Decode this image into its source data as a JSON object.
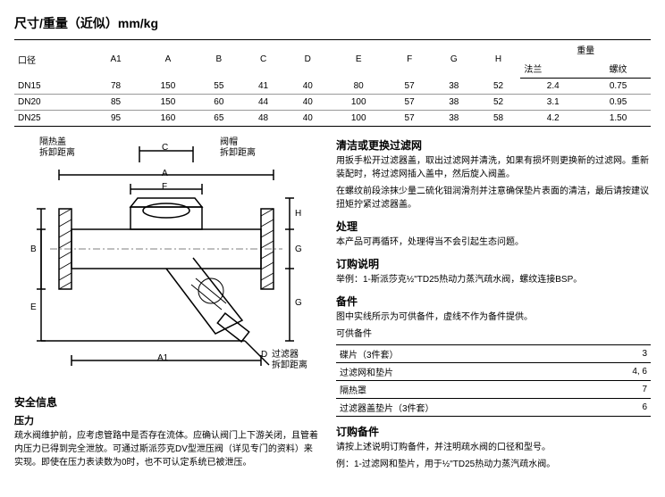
{
  "title": "尺寸/重量（近似）mm/kg",
  "table": {
    "header_main": [
      "口径",
      "A1",
      "A",
      "B",
      "C",
      "D",
      "E",
      "F",
      "G",
      "H"
    ],
    "header_weight": "重量",
    "header_sub": [
      "法兰",
      "螺纹"
    ],
    "rows": [
      [
        "DN15",
        "78",
        "150",
        "55",
        "41",
        "40",
        "80",
        "57",
        "38",
        "52",
        "2.4",
        "0.75"
      ],
      [
        "DN20",
        "85",
        "150",
        "60",
        "44",
        "40",
        "100",
        "57",
        "38",
        "52",
        "3.1",
        "0.95"
      ],
      [
        "DN25",
        "95",
        "160",
        "65",
        "48",
        "40",
        "100",
        "57",
        "38",
        "58",
        "4.2",
        "1.50"
      ]
    ]
  },
  "diagram_labels": {
    "top_left": "隔热盖\n拆卸距离",
    "top_right": "阀帽\n拆卸距离",
    "bottom_right": "过滤器\n拆卸距离",
    "letters": {
      "A": "A",
      "A1": "A1",
      "B": "B",
      "C": "C",
      "D": "D",
      "E": "E",
      "F": "F",
      "G1": "G",
      "G2": "G",
      "H": "H"
    }
  },
  "left_sections": {
    "safety_title": "安全信息",
    "pressure_title": "压力",
    "pressure_text": "疏水阀维护前，应考虑管路中是否存在流体。应确认阀门上下游关闭，且管着内压力已得到完全泄放。可通过斯派莎克DV型泄压阀（详见专门的资料）来实现。即使在压力表读数为0时，也不可认定系统已被泄压。"
  },
  "right_sections": {
    "clean_title": "清洁或更换过滤网",
    "clean_text1": "用扳手松开过滤器盖，取出过滤网并清洗，如果有损坏则更换新的过滤网。重新装配时，将过滤网插入盖中，然后旋入阀盖。",
    "clean_text2": "在螺纹前段涂抹少量二硫化钼润滑剂并注意确保垫片表面的清洁，最后请按建议扭矩拧紧过滤器盖。",
    "process_title": "处理",
    "process_text": "本产品可再循环，处理得当不会引起生态问题。",
    "order_title": "订购说明",
    "order_text": "举例：1-斯派莎克½\"TD25热动力蒸汽疏水阀，螺纹连接BSP。",
    "spare_title": "备件",
    "spare_text": "图中实线所示为可供备件，虚线不作为备件提供。",
    "spare_sub": "可供备件",
    "spare_rows": [
      [
        "碟片（3件套）",
        "3"
      ],
      [
        "过滤网和垫片",
        "4, 6"
      ],
      [
        "隔热罩",
        "7"
      ],
      [
        "过滤器盖垫片（3件套）",
        "6"
      ]
    ],
    "order_spare_title": "订购备件",
    "order_spare_text1": "请按上述说明订购备件，并注明疏水阀的口径和型号。",
    "order_spare_text2": "例：1-过滤网和垫片，用于½\"TD25热动力蒸汽疏水阀。"
  }
}
